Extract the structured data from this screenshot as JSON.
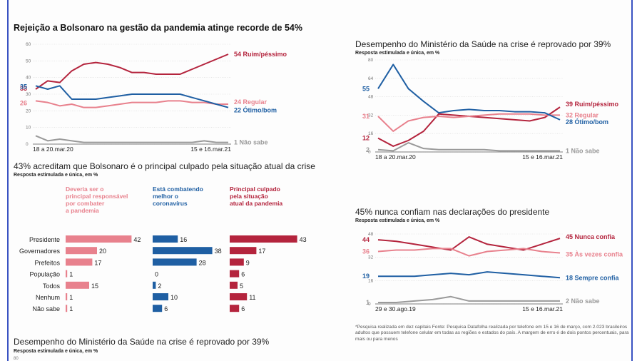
{
  "charts": [
    {
      "title": "Rejeição a Bolsonaro na gestão da pandemia atinge recorde de 54%",
      "chart_data": {
        "type": "line",
        "x_labels": [
          "18 a 20.mar.20",
          "15 e 16.mar.21"
        ],
        "y_ticks": [
          0,
          10,
          20,
          30,
          40,
          50,
          60
        ],
        "ylim": [
          0,
          60
        ],
        "series": [
          {
            "name": "Ruim/péssimo",
            "color": "#b4243d",
            "start_label": "33",
            "end_label": "54 Ruim/péssimo",
            "values": [
              33,
              38,
              37,
              44,
              48,
              49,
              48,
              46,
              43,
              43,
              42,
              42,
              42,
              45,
              48,
              51,
              54
            ]
          },
          {
            "name": "Regular",
            "color": "#e8818d",
            "start_label": "26",
            "end_label": "24 Regular",
            "values": [
              26,
              25,
              23,
              24,
              22,
              22,
              23,
              24,
              25,
              25,
              25,
              26,
              26,
              25,
              25,
              24,
              24
            ]
          },
          {
            "name": "Ótimo/bom",
            "color": "#1f5fa3",
            "start_label": "35",
            "end_label": "22 Ótimo/bom",
            "values": [
              35,
              33,
              35,
              27,
              27,
              27,
              28,
              29,
              30,
              30,
              30,
              30,
              30,
              28,
              26,
              24,
              22
            ]
          },
          {
            "name": "Não sabe",
            "color": "#9a9a9a",
            "start_label": "",
            "end_label": "1   Não sabe",
            "values": [
              5,
              2,
              3,
              2,
              1,
              1,
              1,
              1,
              1,
              1,
              1,
              1,
              1,
              1,
              2,
              1,
              1
            ]
          }
        ]
      }
    },
    {
      "title": "Desempenho do Ministério da Saúde na crise é reprovado por 39%",
      "note": "Resposta estimulada e única, em %",
      "chart_data": {
        "type": "line",
        "x_labels": [
          "18 a 20.mar.20",
          "15 e 16.mar.21"
        ],
        "y_ticks": [
          0,
          16,
          32,
          48,
          64,
          80
        ],
        "ylim": [
          0,
          80
        ],
        "series": [
          {
            "name": "Ruim/péssimo",
            "color": "#b4243d",
            "start_label": "12",
            "end_label": "39 Ruim/péssimo",
            "values": [
              12,
              5,
              10,
              18,
              33,
              32,
              31,
              30,
              29,
              28,
              27,
              30,
              39
            ]
          },
          {
            "name": "Regular",
            "color": "#e8818d",
            "start_label": "31",
            "end_label": "32 Regular",
            "values": [
              31,
              18,
              27,
              30,
              31,
              30,
              31,
              32,
              33,
              33,
              33,
              32,
              32
            ]
          },
          {
            "name": "Ótimo/bom",
            "color": "#1f5fa3",
            "start_label": "55",
            "end_label": "28 Ótimo/bom",
            "values": [
              55,
              76,
              55,
              44,
              34,
              36,
              37,
              36,
              36,
              35,
              35,
              34,
              28
            ]
          },
          {
            "name": "Não sabe",
            "color": "#9a9a9a",
            "start_label": "2",
            "end_label": "1   Não sabe",
            "values": [
              2,
              1,
              8,
              3,
              2,
              2,
              2,
              2,
              1,
              1,
              1,
              1,
              1
            ]
          }
        ]
      }
    },
    {
      "title": "43% acreditam que Bolsonaro é o principal culpado pela situação atual da crise",
      "note": "Resposta estimulada e única, em %",
      "chart_data": {
        "type": "bar",
        "categories": [
          "Presidente",
          "Governadores",
          "Prefeitos",
          "População",
          "Todos",
          "Nenhum",
          "Não sabe"
        ],
        "series": [
          {
            "name": "Deveria ser o principal responsável por combater a pandemia",
            "color": "#e8818d",
            "header_lines": [
              "Deveria ser o",
              "principal responsável",
              "por combater",
              "a pandemia"
            ],
            "values": [
              42,
              20,
              17,
              1,
              15,
              1,
              1
            ]
          },
          {
            "name": "Está combatendo melhor o coronavírus",
            "color": "#1f5fa3",
            "header_lines": [
              "Está combatendo",
              "melhor o",
              "coronavírus"
            ],
            "values": [
              16,
              38,
              28,
              0,
              2,
              10,
              6
            ]
          },
          {
            "name": "Principal culpado pela situação atual da pandemia",
            "color": "#b4243d",
            "header_lines": [
              "Principal culpado",
              "pela situação",
              "atual da pandemia"
            ],
            "values": [
              43,
              17,
              9,
              6,
              5,
              11,
              6
            ]
          }
        ]
      }
    },
    {
      "title": "45% nunca confiam nas declarações do presidente",
      "note": "Resposta estimulada e única, em %",
      "chart_data": {
        "type": "line",
        "x_labels": [
          "29 e 30.ago.19",
          "15 e 16.mar.21"
        ],
        "y_ticks": [
          0,
          16,
          32,
          48
        ],
        "ylim": [
          0,
          48
        ],
        "series": [
          {
            "name": "Nunca confia",
            "color": "#b4243d",
            "start_label": "44",
            "end_label": "45 Nunca confia",
            "values": [
              44,
              43,
              41,
              39,
              37,
              46,
              41,
              39,
              37,
              41,
              45
            ]
          },
          {
            "name": "Às vezes confia",
            "color": "#e8818d",
            "start_label": "36",
            "end_label": "35 Às vezes confia",
            "values": [
              36,
              37,
              37,
              38,
              38,
              33,
              36,
              37,
              38,
              36,
              35
            ]
          },
          {
            "name": "Sempre confia",
            "color": "#1f5fa3",
            "start_label": "19",
            "end_label": "18 Sempre confia",
            "values": [
              19,
              19,
              19,
              20,
              21,
              20,
              22,
              21,
              20,
              19,
              18
            ]
          },
          {
            "name": "Não sabe",
            "color": "#9a9a9a",
            "start_label": "1",
            "end_label": "2   Não sabe",
            "values": [
              1,
              1,
              2,
              3,
              5,
              2,
              2,
              2,
              2,
              2,
              2
            ]
          }
        ]
      }
    },
    {
      "title": "Desempenho do Ministério da Saúde na crise é reprovado por 39%",
      "note": "Resposta estimulada e única, em %",
      "tick": "80"
    }
  ],
  "footer": "*Pesquisa realizada em dez capitais    Fonte: Pesquisa Datafolha realizada por telefone em 15 e 16 de março, com 2.023 brasileiros adultos que possuem telefone celular em todas as regiões e estados do país. A margem de erro é de dois pontos percentuais, para mais ou para menos",
  "colors": {
    "dark_red": "#b4243d",
    "pink": "#e8818d",
    "blue": "#1f5fa3",
    "gray": "#9a9a9a",
    "frame": "#3a53c2"
  }
}
